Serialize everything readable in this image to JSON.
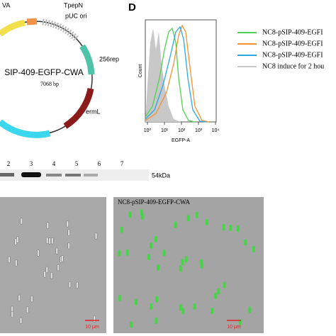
{
  "plasmid": {
    "labels": {
      "a": "VA",
      "tpepn": "TpepN",
      "puc": "pUC  ori",
      "rep": "256rep",
      "name": "SIP-409-EGFP-CWA",
      "size": "7068 bp",
      "erm": "ermL"
    }
  },
  "flow": {
    "label": "D",
    "y_axis": "Count",
    "x_axis": "EGFP-A",
    "ticks": [
      "10⁰",
      "10¹",
      "10²",
      "10³",
      "10⁴"
    ],
    "legend": [
      {
        "name": "NC8-pSIP-409-EGFI",
        "color": "#4fd24f"
      },
      {
        "name": "NC8-pSIP-409-EGFI",
        "color": "#f5922f"
      },
      {
        "name": "NC8-pSIP-409-EGFI",
        "color": "#29a9e6"
      },
      {
        "name": "NC8 induce for 2 hou",
        "color": "#c8c8c8"
      }
    ]
  },
  "gel": {
    "lanes": [
      "2",
      "3",
      "4",
      "5",
      "6",
      "7"
    ],
    "marker": "54kDa"
  },
  "micrographs": {
    "right_caption": "NC8-pSIP-409-EGFP-CWA",
    "scale_left": "10 μm",
    "scale_right": "10 μm"
  }
}
